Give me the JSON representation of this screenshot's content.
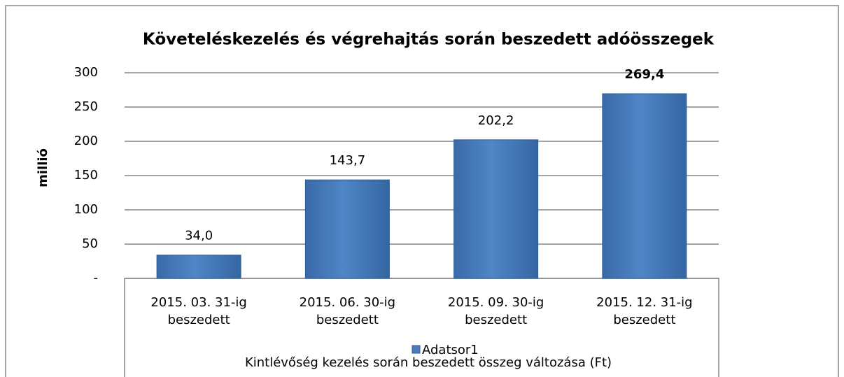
{
  "chart_data": {
    "type": "bar",
    "title": "Követeléskezelés és végrehajtás során beszedett adóösszegek",
    "x_label": "Kintlévőség kezelés során beszedett összeg változása (Ft)",
    "y_label": "millió",
    "categories": [
      "2015. 03. 31-ig beszedett",
      "2015. 06. 30-ig beszedett",
      "2015. 09. 30-ig beszedett",
      "2015. 12. 31-ig beszedett"
    ],
    "series": [
      {
        "name": "Adatsor1",
        "color": "#4a7ebb",
        "values": [
          34.0,
          143.7,
          202.2,
          269.4
        ],
        "value_labels": [
          "34,0",
          "143,7",
          "202,2",
          "269,4"
        ]
      }
    ],
    "bold_value_label_index": 3,
    "ylim": [
      0,
      300
    ],
    "yticks": [
      {
        "value": 0,
        "label": "-"
      },
      50,
      100,
      150,
      200,
      250,
      300
    ],
    "grid": true,
    "legend": "bottom"
  }
}
